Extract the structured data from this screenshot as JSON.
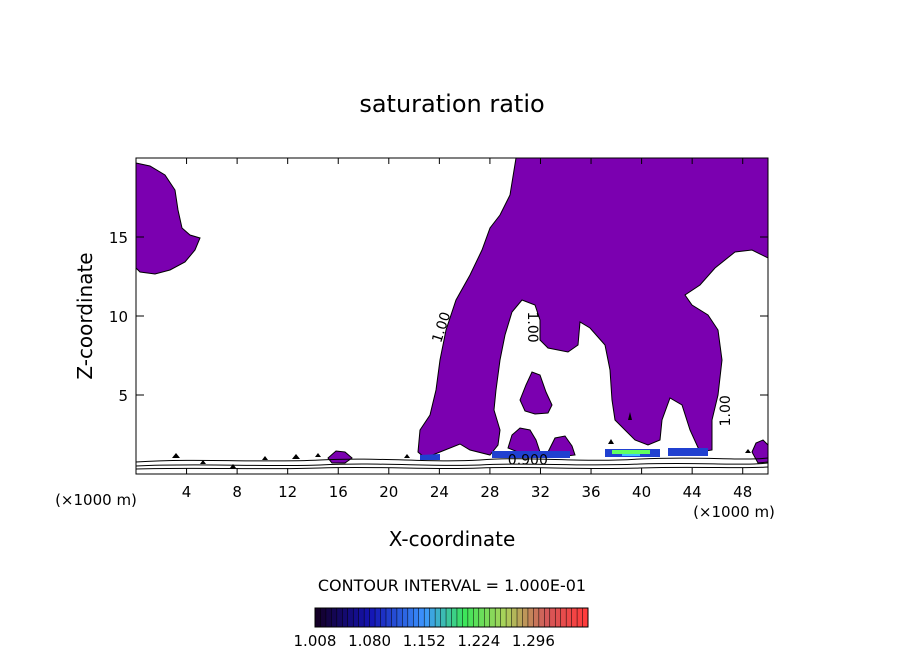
{
  "chart_data": {
    "type": "contour",
    "title": "saturation ratio",
    "xlabel": "X-coordinate",
    "ylabel": "Z-coordinate",
    "x_unit_left": "(×1000 m)",
    "x_unit_right": "(×1000 m)",
    "xlim": [
      0,
      50
    ],
    "ylim": [
      0,
      20
    ],
    "x_ticks": [
      4,
      8,
      12,
      16,
      20,
      24,
      28,
      32,
      36,
      40,
      44,
      48
    ],
    "x_tick_labels": [
      "4",
      "8",
      "12",
      "16",
      "20",
      "24",
      "28",
      "32",
      "36",
      "40",
      "44",
      "48"
    ],
    "y_ticks": [
      5,
      10,
      15
    ],
    "y_tick_labels": [
      "5",
      "10",
      "15"
    ],
    "contour_interval_text": "CONTOUR INTERVAL = 1.000E-01",
    "contour_labels": [
      {
        "text": "1.00",
        "x": 24.5,
        "z": 9.2,
        "angle": -72
      },
      {
        "text": "1.00",
        "x": 31.0,
        "z": 9.3,
        "angle": 90
      },
      {
        "text": "1.00",
        "x": 47.0,
        "z": 4.0,
        "angle": -90
      },
      {
        "text": "0.900",
        "x": 31.0,
        "z": 0.6,
        "angle": 0
      }
    ],
    "colorbar": {
      "min": 1.008,
      "max": 1.368,
      "tick_values": [
        1.008,
        1.08,
        1.152,
        1.224,
        1.296
      ],
      "tick_labels": [
        "1.008",
        "1.080",
        "1.152",
        "1.224",
        "1.296"
      ],
      "n_bins": 50
    },
    "colors": {
      "saturated_fill": "#7b00b0",
      "low_level_blue": "#2040d0",
      "low_level_green": "#60ff60",
      "low_level_cyan": "#40c0ff"
    }
  }
}
